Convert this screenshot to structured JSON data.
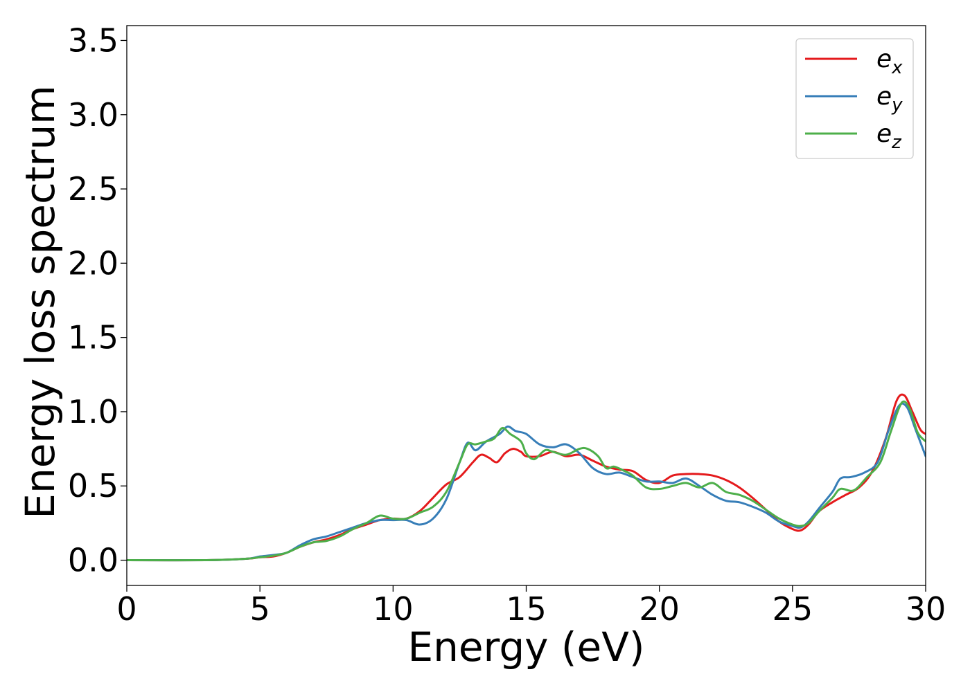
{
  "chart_data": {
    "type": "line",
    "xlabel": "Energy (eV)",
    "ylabel": "Energy loss spectrum",
    "xlim": [
      0,
      30
    ],
    "ylim": [
      -0.17,
      3.6
    ],
    "xticks": [
      "0",
      "5",
      "10",
      "15",
      "20",
      "25",
      "30"
    ],
    "yticks": [
      "0.0",
      "0.5",
      "1.0",
      "1.5",
      "2.0",
      "2.5",
      "3.0",
      "3.5"
    ],
    "grid": false,
    "legend_position": "top-right",
    "series": [
      {
        "name": "e",
        "subscript": "x",
        "color": "#e41a1c",
        "points": [
          [
            0,
            0
          ],
          [
            3,
            0
          ],
          [
            4.5,
            0.01
          ],
          [
            5,
            0.02
          ],
          [
            5.5,
            0.025
          ],
          [
            6,
            0.05
          ],
          [
            6.5,
            0.09
          ],
          [
            7,
            0.12
          ],
          [
            7.5,
            0.14
          ],
          [
            8,
            0.17
          ],
          [
            8.5,
            0.21
          ],
          [
            9,
            0.24
          ],
          [
            9.5,
            0.27
          ],
          [
            10,
            0.28
          ],
          [
            10.5,
            0.28
          ],
          [
            11,
            0.33
          ],
          [
            11.5,
            0.42
          ],
          [
            12,
            0.51
          ],
          [
            12.5,
            0.56
          ],
          [
            13,
            0.66
          ],
          [
            13.3,
            0.71
          ],
          [
            13.6,
            0.69
          ],
          [
            13.9,
            0.66
          ],
          [
            14.2,
            0.72
          ],
          [
            14.5,
            0.75
          ],
          [
            14.8,
            0.73
          ],
          [
            15,
            0.7
          ],
          [
            15.5,
            0.7
          ],
          [
            16,
            0.73
          ],
          [
            16.5,
            0.7
          ],
          [
            17,
            0.71
          ],
          [
            17.5,
            0.67
          ],
          [
            18,
            0.63
          ],
          [
            18.5,
            0.61
          ],
          [
            19,
            0.6
          ],
          [
            19.5,
            0.54
          ],
          [
            20,
            0.52
          ],
          [
            20.5,
            0.57
          ],
          [
            21,
            0.58
          ],
          [
            21.5,
            0.58
          ],
          [
            22,
            0.57
          ],
          [
            22.5,
            0.54
          ],
          [
            23,
            0.49
          ],
          [
            23.5,
            0.42
          ],
          [
            24,
            0.34
          ],
          [
            24.5,
            0.26
          ],
          [
            25,
            0.21
          ],
          [
            25.3,
            0.2
          ],
          [
            25.6,
            0.24
          ],
          [
            26,
            0.33
          ],
          [
            26.5,
            0.39
          ],
          [
            27,
            0.44
          ],
          [
            27.5,
            0.49
          ],
          [
            28,
            0.6
          ],
          [
            28.5,
            0.82
          ],
          [
            28.9,
            1.07
          ],
          [
            29.2,
            1.11
          ],
          [
            29.5,
            1.0
          ],
          [
            29.8,
            0.88
          ],
          [
            30,
            0.85
          ]
        ]
      },
      {
        "name": "e",
        "subscript": "y",
        "color": "#377eb8",
        "points": [
          [
            0,
            0
          ],
          [
            3,
            0
          ],
          [
            4.5,
            0.01
          ],
          [
            5,
            0.025
          ],
          [
            5.5,
            0.035
          ],
          [
            6,
            0.05
          ],
          [
            6.5,
            0.1
          ],
          [
            7,
            0.14
          ],
          [
            7.5,
            0.16
          ],
          [
            8,
            0.19
          ],
          [
            8.5,
            0.22
          ],
          [
            9,
            0.25
          ],
          [
            9.5,
            0.27
          ],
          [
            10,
            0.27
          ],
          [
            10.5,
            0.27
          ],
          [
            11,
            0.24
          ],
          [
            11.5,
            0.28
          ],
          [
            12,
            0.41
          ],
          [
            12.5,
            0.66
          ],
          [
            12.8,
            0.79
          ],
          [
            13.1,
            0.74
          ],
          [
            13.5,
            0.8
          ],
          [
            14,
            0.85
          ],
          [
            14.3,
            0.9
          ],
          [
            14.6,
            0.87
          ],
          [
            15,
            0.85
          ],
          [
            15.5,
            0.78
          ],
          [
            16,
            0.76
          ],
          [
            16.5,
            0.78
          ],
          [
            17,
            0.72
          ],
          [
            17.5,
            0.62
          ],
          [
            18,
            0.58
          ],
          [
            18.5,
            0.59
          ],
          [
            19,
            0.56
          ],
          [
            19.5,
            0.53
          ],
          [
            20,
            0.53
          ],
          [
            20.5,
            0.52
          ],
          [
            21,
            0.55
          ],
          [
            21.5,
            0.5
          ],
          [
            22,
            0.44
          ],
          [
            22.5,
            0.4
          ],
          [
            23,
            0.39
          ],
          [
            23.5,
            0.36
          ],
          [
            24,
            0.32
          ],
          [
            24.5,
            0.26
          ],
          [
            25,
            0.23
          ],
          [
            25.3,
            0.22
          ],
          [
            25.6,
            0.26
          ],
          [
            26,
            0.35
          ],
          [
            26.5,
            0.46
          ],
          [
            26.8,
            0.55
          ],
          [
            27.2,
            0.56
          ],
          [
            27.7,
            0.59
          ],
          [
            28.2,
            0.66
          ],
          [
            28.6,
            0.87
          ],
          [
            29,
            1.04
          ],
          [
            29.3,
            1.03
          ],
          [
            29.6,
            0.89
          ],
          [
            30,
            0.7
          ]
        ]
      },
      {
        "name": "e",
        "subscript": "z",
        "color": "#4daf4a",
        "points": [
          [
            0,
            0
          ],
          [
            3,
            0
          ],
          [
            4.5,
            0.01
          ],
          [
            5,
            0.02
          ],
          [
            5.5,
            0.03
          ],
          [
            6,
            0.05
          ],
          [
            6.5,
            0.09
          ],
          [
            7,
            0.12
          ],
          [
            7.5,
            0.13
          ],
          [
            8,
            0.16
          ],
          [
            8.5,
            0.21
          ],
          [
            9,
            0.25
          ],
          [
            9.5,
            0.3
          ],
          [
            10,
            0.28
          ],
          [
            10.5,
            0.28
          ],
          [
            11,
            0.32
          ],
          [
            11.5,
            0.36
          ],
          [
            12,
            0.46
          ],
          [
            12.5,
            0.66
          ],
          [
            12.8,
            0.78
          ],
          [
            13.1,
            0.78
          ],
          [
            13.5,
            0.8
          ],
          [
            13.8,
            0.82
          ],
          [
            14.1,
            0.89
          ],
          [
            14.4,
            0.85
          ],
          [
            14.8,
            0.8
          ],
          [
            15,
            0.72
          ],
          [
            15.3,
            0.68
          ],
          [
            15.7,
            0.74
          ],
          [
            16,
            0.73
          ],
          [
            16.5,
            0.71
          ],
          [
            17,
            0.75
          ],
          [
            17.3,
            0.75
          ],
          [
            17.7,
            0.7
          ],
          [
            18,
            0.62
          ],
          [
            18.3,
            0.63
          ],
          [
            18.7,
            0.6
          ],
          [
            19,
            0.57
          ],
          [
            19.5,
            0.49
          ],
          [
            20,
            0.48
          ],
          [
            20.5,
            0.5
          ],
          [
            21,
            0.52
          ],
          [
            21.5,
            0.49
          ],
          [
            22,
            0.52
          ],
          [
            22.5,
            0.46
          ],
          [
            23,
            0.44
          ],
          [
            23.5,
            0.4
          ],
          [
            24,
            0.34
          ],
          [
            24.5,
            0.28
          ],
          [
            25,
            0.24
          ],
          [
            25.3,
            0.23
          ],
          [
            25.6,
            0.25
          ],
          [
            26,
            0.33
          ],
          [
            26.5,
            0.42
          ],
          [
            26.8,
            0.48
          ],
          [
            27.3,
            0.47
          ],
          [
            27.8,
            0.56
          ],
          [
            28.3,
            0.66
          ],
          [
            28.7,
            0.87
          ],
          [
            29.1,
            1.06
          ],
          [
            29.4,
            1.02
          ],
          [
            29.7,
            0.86
          ],
          [
            30,
            0.8
          ]
        ]
      }
    ]
  }
}
